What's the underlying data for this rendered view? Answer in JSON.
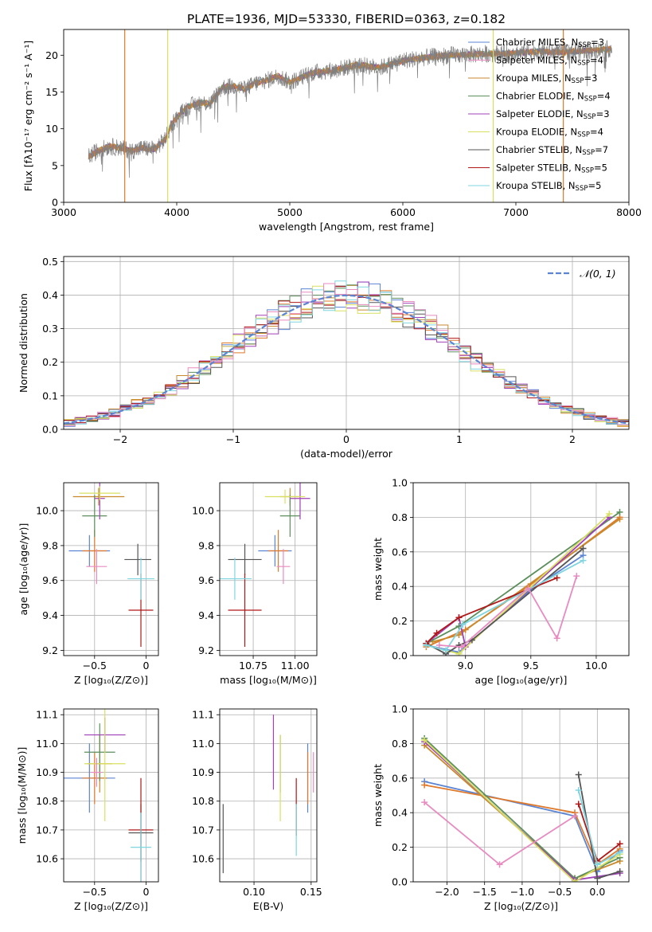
{
  "figure_title": "PLATE=1936, MJD=53330, FIBERID=0363, z=0.182",
  "colors": {
    "chabrier_miles": "#5b84d4",
    "salpeter_miles": "#e07a2a",
    "kroupa_miles": "#c98a2c",
    "chabrier_elodie": "#5c8f5c",
    "salpeter_elodie": "#a040b8",
    "kroupa_elodie": "#d8e060",
    "chabrier_stelib": "#555555",
    "salpeter_stelib": "#b01818",
    "kroupa_stelib": "#7fd6e0",
    "pink": "#e88bc0",
    "gray": "#808080",
    "normal": "#5b84d4"
  },
  "chart_data": [
    {
      "type": "line",
      "id": "spectrum",
      "xlabel": "wavelength [Angstrom, rest frame]",
      "ylabel": "Flux [fλ10⁻¹⁷ erg cm⁻² s⁻¹ A⁻¹]",
      "xlim": [
        3000,
        8000
      ],
      "ylim": [
        0,
        23.5
      ],
      "xticks": [
        3000,
        4000,
        5000,
        6000,
        7000,
        8000
      ],
      "yticks": [
        0,
        5,
        10,
        15,
        20
      ],
      "legend_position": "top-right",
      "continuum": {
        "x": [
          3220,
          3300,
          3400,
          3500,
          3600,
          3700,
          3800,
          3900,
          3950,
          4000,
          4100,
          4200,
          4300,
          4400,
          4500,
          4600,
          4700,
          4800,
          4900,
          5000,
          5200,
          5400,
          5600,
          5800,
          6000,
          6200,
          6400,
          6600,
          6800,
          7000,
          7200,
          7400,
          7600,
          7800,
          7850
        ],
        "y": [
          6.2,
          7.0,
          7.6,
          7.4,
          7.0,
          7.4,
          7.2,
          8.6,
          10.5,
          11.5,
          13.0,
          13.5,
          13.5,
          15.6,
          15.8,
          15.4,
          16.2,
          16.6,
          17.2,
          16.3,
          17.6,
          18.0,
          18.7,
          18.3,
          19.3,
          19.7,
          20.0,
          20.1,
          20.2,
          20.3,
          20.5,
          20.4,
          20.6,
          20.8,
          20.9
        ]
      },
      "legend": [
        {
          "label": "Chabrier MILES, N",
          "sub": "SSP",
          "suffix": "=3",
          "color_key": "chabrier_miles"
        },
        {
          "label": "Salpeter MILES, N",
          "sub": "SSP",
          "suffix": "=4",
          "color_key": "pink"
        },
        {
          "label": "Kroupa MILES, N",
          "sub": "SSP",
          "suffix": "=3",
          "color_key": "kroupa_miles"
        },
        {
          "label": "Chabrier ELODIE, N",
          "sub": "SSP",
          "suffix": "=4",
          "color_key": "chabrier_elodie"
        },
        {
          "label": "Salpeter ELODIE, N",
          "sub": "SSP",
          "suffix": "=3",
          "color_key": "salpeter_elodie"
        },
        {
          "label": "Kroupa ELODIE, N",
          "sub": "SSP",
          "suffix": "=4",
          "color_key": "kroupa_elodie"
        },
        {
          "label": "Chabrier STELIB, N",
          "sub": "SSP",
          "suffix": "=7",
          "color_key": "chabrier_stelib"
        },
        {
          "label": "Salpeter STELIB, N",
          "sub": "SSP",
          "suffix": "=5",
          "color_key": "salpeter_stelib"
        },
        {
          "label": "Kroupa STELIB, N",
          "sub": "SSP",
          "suffix": "=5",
          "color_key": "kroupa_stelib"
        }
      ],
      "cutoffs": [
        {
          "x": 3540,
          "color_key": "salpeter_miles"
        },
        {
          "x": 3920,
          "color_key": "kroupa_elodie"
        },
        {
          "x": 6800,
          "color_key": "kroupa_elodie"
        },
        {
          "x": 7420,
          "color_key": "salpeter_miles"
        }
      ]
    },
    {
      "type": "histogram",
      "id": "residuals",
      "xlabel": "(data-model)/error",
      "ylabel": "Normed distribution",
      "xlim": [
        -2.5,
        2.5
      ],
      "ylim": [
        0,
        0.515
      ],
      "xticks": [
        -2,
        -1,
        0,
        1,
        2
      ],
      "yticks": [
        0.0,
        0.1,
        0.2,
        0.3,
        0.4,
        0.5
      ],
      "grid": true,
      "bin_width": 0.1,
      "normal_label": "𝒩(0, 1)",
      "legend_position": "top-right"
    },
    {
      "type": "errorbar",
      "id": "age_vs_z",
      "xlabel": "Z [log₁₀(Z/Z⊙)]",
      "ylabel": "age  [log₁₀(age/yr)]",
      "xlim": [
        -0.8,
        0.12
      ],
      "ylim": [
        9.17,
        10.16
      ],
      "xticks": [
        -0.5,
        0.0
      ],
      "yticks": [
        9.2,
        9.4,
        9.6,
        9.8,
        10.0
      ],
      "points": [
        {
          "x": -0.55,
          "xerr": 0.2,
          "y": 9.77,
          "yerr": 0.09,
          "color_key": "chabrier_miles"
        },
        {
          "x": -0.5,
          "xerr": 0.12,
          "y": 9.77,
          "yerr": 0.12,
          "color_key": "salpeter_miles"
        },
        {
          "x": -0.46,
          "xerr": 0.25,
          "y": 10.08,
          "yerr": 0.05,
          "color_key": "kroupa_miles"
        },
        {
          "x": -0.5,
          "xerr": 0.12,
          "y": 9.97,
          "yerr": 0.12,
          "color_key": "chabrier_elodie"
        },
        {
          "x": -0.45,
          "xerr": 0.05,
          "y": 10.07,
          "yerr": 0.12,
          "color_key": "salpeter_elodie"
        },
        {
          "x": -0.45,
          "xerr": 0.2,
          "y": 10.1,
          "yerr": 0.04,
          "color_key": "kroupa_elodie"
        },
        {
          "x": -0.08,
          "xerr": 0.13,
          "y": 9.72,
          "yerr": 0.09,
          "color_key": "chabrier_stelib"
        },
        {
          "x": -0.05,
          "xerr": 0.12,
          "y": 9.43,
          "yerr": 0.21,
          "color_key": "salpeter_stelib"
        },
        {
          "x": -0.05,
          "xerr": 0.13,
          "y": 9.61,
          "yerr": 0.12,
          "color_key": "kroupa_stelib"
        },
        {
          "x": -0.48,
          "xerr": 0.1,
          "y": 9.68,
          "yerr": 0.1,
          "color_key": "pink"
        }
      ]
    },
    {
      "type": "errorbar",
      "id": "age_vs_mass",
      "xlabel": "mass [log₁₀(M/M⊙)]",
      "ylabel": "",
      "xlim": [
        10.55,
        11.13
      ],
      "ylim": [
        9.17,
        10.16
      ],
      "xticks": [
        10.75,
        11.0
      ],
      "xtick_labels": [
        "10.75",
        "11.00"
      ],
      "yticks": [
        9.2,
        9.4,
        9.6,
        9.8,
        10.0
      ],
      "points": [
        {
          "x": 10.88,
          "xerr": 0.1,
          "y": 9.77,
          "yerr": 0.09,
          "color_key": "chabrier_miles"
        },
        {
          "x": 10.9,
          "xerr": 0.06,
          "y": 9.77,
          "yerr": 0.12,
          "color_key": "salpeter_miles"
        },
        {
          "x": 10.97,
          "xerr": 0.06,
          "y": 10.08,
          "yerr": 0.05,
          "color_key": "kroupa_miles"
        },
        {
          "x": 10.97,
          "xerr": 0.06,
          "y": 9.97,
          "yerr": 0.12,
          "color_key": "chabrier_elodie"
        },
        {
          "x": 11.03,
          "xerr": 0.06,
          "y": 10.07,
          "yerr": 0.12,
          "color_key": "salpeter_elodie"
        },
        {
          "x": 10.94,
          "xerr": 0.12,
          "y": 10.08,
          "yerr": 0.04,
          "color_key": "kroupa_elodie"
        },
        {
          "x": 10.7,
          "xerr": 0.1,
          "y": 9.72,
          "yerr": 0.09,
          "color_key": "chabrier_stelib"
        },
        {
          "x": 10.7,
          "xerr": 0.1,
          "y": 9.43,
          "yerr": 0.21,
          "color_key": "salpeter_stelib"
        },
        {
          "x": 10.64,
          "xerr": 0.1,
          "y": 9.61,
          "yerr": 0.12,
          "color_key": "kroupa_stelib"
        },
        {
          "x": 10.93,
          "xerr": 0.04,
          "y": 9.68,
          "yerr": 0.1,
          "color_key": "pink"
        }
      ]
    },
    {
      "type": "line",
      "id": "weight_vs_age",
      "xlabel": "age  [log₁₀(age/yr)]",
      "ylabel": "mass weight",
      "xlim": [
        8.6,
        10.25
      ],
      "ylim": [
        0,
        1.0
      ],
      "xticks": [
        9.0,
        9.5,
        10.0
      ],
      "yticks": [
        0.0,
        0.2,
        0.4,
        0.6,
        0.8,
        1.0
      ],
      "grid": true,
      "series": [
        {
          "color_key": "chabrier_miles",
          "x": [
            8.7,
            8.95,
            9.5,
            9.9
          ],
          "y": [
            0.06,
            0.02,
            0.38,
            0.58
          ]
        },
        {
          "color_key": "salpeter_miles",
          "x": [
            8.7,
            9.0,
            9.48,
            10.18
          ],
          "y": [
            0.05,
            0.15,
            0.4,
            0.8
          ]
        },
        {
          "color_key": "kroupa_miles",
          "x": [
            8.75,
            8.95,
            10.18
          ],
          "y": [
            0.08,
            0.12,
            0.79
          ]
        },
        {
          "color_key": "chabrier_elodie",
          "x": [
            8.7,
            8.95,
            10.18
          ],
          "y": [
            0.07,
            0.17,
            0.83
          ]
        },
        {
          "color_key": "salpeter_elodie",
          "x": [
            8.7,
            8.95,
            9.0,
            10.1
          ],
          "y": [
            0.07,
            0.22,
            0.05,
            0.8
          ]
        },
        {
          "color_key": "kroupa_elodie",
          "x": [
            8.7,
            8.95,
            10.1
          ],
          "y": [
            0.06,
            0.01,
            0.82
          ]
        },
        {
          "color_key": "chabrier_stelib",
          "x": [
            8.7,
            8.85,
            8.95,
            9.05,
            9.9
          ],
          "y": [
            0.07,
            0.01,
            0.06,
            0.09,
            0.62
          ]
        },
        {
          "color_key": "salpeter_stelib",
          "x": [
            8.7,
            8.78,
            8.95,
            9.7
          ],
          "y": [
            0.07,
            0.13,
            0.22,
            0.45
          ]
        },
        {
          "color_key": "kroupa_stelib",
          "x": [
            8.7,
            8.85,
            8.98,
            9.9
          ],
          "y": [
            0.06,
            0.03,
            0.18,
            0.55
          ]
        },
        {
          "color_key": "pink",
          "x": [
            8.8,
            8.97,
            9.48,
            9.7,
            9.85
          ],
          "y": [
            0.06,
            0.05,
            0.39,
            0.1,
            0.46
          ]
        }
      ]
    },
    {
      "type": "errorbar",
      "id": "mass_vs_z",
      "xlabel": "Z [log₁₀(Z/Z⊙)]",
      "ylabel": "mass [log₁₀(M/M⊙)]",
      "xlim": [
        -0.8,
        0.12
      ],
      "ylim": [
        10.52,
        11.12
      ],
      "xticks": [
        -0.5,
        0.0
      ],
      "yticks": [
        10.6,
        10.7,
        10.8,
        10.9,
        11.0,
        11.1
      ],
      "points": [
        {
          "x": -0.55,
          "xerr": 0.25,
          "y": 10.88,
          "yerr": 0.12,
          "color_key": "chabrier_miles"
        },
        {
          "x": -0.5,
          "xerr": 0.12,
          "y": 10.88,
          "yerr": 0.09,
          "color_key": "salpeter_miles"
        },
        {
          "x": -0.45,
          "xerr": 0.12,
          "y": 10.93,
          "yerr": 0.1,
          "color_key": "kroupa_miles"
        },
        {
          "x": -0.45,
          "xerr": 0.15,
          "y": 10.97,
          "yerr": 0.1,
          "color_key": "chabrier_elodie"
        },
        {
          "x": -0.4,
          "xerr": 0.2,
          "y": 11.03,
          "yerr": 0.06,
          "color_key": "salpeter_elodie"
        },
        {
          "x": -0.4,
          "xerr": 0.2,
          "y": 10.93,
          "yerr": 0.2,
          "color_key": "kroupa_elodie"
        },
        {
          "x": -0.05,
          "xerr": 0.12,
          "y": 10.69,
          "yerr": 0.1,
          "color_key": "chabrier_stelib"
        },
        {
          "x": -0.05,
          "xerr": 0.12,
          "y": 10.7,
          "yerr": 0.18,
          "color_key": "salpeter_stelib"
        },
        {
          "x": -0.05,
          "xerr": 0.1,
          "y": 10.64,
          "yerr": 0.12,
          "color_key": "kroupa_stelib"
        },
        {
          "x": -0.48,
          "xerr": 0.06,
          "y": 10.9,
          "yerr": 0.05,
          "color_key": "pink"
        }
      ]
    },
    {
      "type": "errorbar",
      "id": "mass_vs_ebv",
      "xlabel": "E(B-V)",
      "ylabel": "",
      "xlim": [
        0.07,
        0.155
      ],
      "ylim": [
        10.52,
        11.12
      ],
      "xticks": [
        0.1,
        0.15
      ],
      "xtick_labels": [
        "0.10",
        "0.15"
      ],
      "yticks": [
        10.6,
        10.7,
        10.8,
        10.9,
        11.0,
        11.1
      ],
      "points": [
        {
          "x": 0.147,
          "xerr": 0,
          "y": 10.88,
          "yerr": 0.12,
          "color_key": "chabrier_miles"
        },
        {
          "x": 0.147,
          "xerr": 0,
          "y": 10.88,
          "yerr": 0.09,
          "color_key": "salpeter_miles"
        },
        {
          "x": 0.123,
          "xerr": 0,
          "y": 10.93,
          "yerr": 0.1,
          "color_key": "chabrier_elodie"
        },
        {
          "x": 0.117,
          "xerr": 0,
          "y": 10.97,
          "yerr": 0.13,
          "color_key": "salpeter_elodie"
        },
        {
          "x": 0.123,
          "xerr": 0,
          "y": 10.88,
          "yerr": 0.15,
          "color_key": "kroupa_elodie"
        },
        {
          "x": 0.073,
          "xerr": 0,
          "y": 10.67,
          "yerr": 0.12,
          "color_key": "chabrier_stelib"
        },
        {
          "x": 0.137,
          "xerr": 0,
          "y": 10.78,
          "yerr": 0.1,
          "color_key": "salpeter_stelib"
        },
        {
          "x": 0.137,
          "xerr": 0,
          "y": 10.7,
          "yerr": 0.09,
          "color_key": "kroupa_stelib"
        },
        {
          "x": 0.152,
          "xerr": 0,
          "y": 10.9,
          "yerr": 0.07,
          "color_key": "pink"
        }
      ]
    },
    {
      "type": "line",
      "id": "weight_vs_z",
      "xlabel": "Z [log₁₀(Z/Z⊙)]",
      "ylabel": "mass weight",
      "xlim": [
        -2.45,
        0.42
      ],
      "ylim": [
        0,
        1.0
      ],
      "xticks": [
        -2.0,
        -1.5,
        -1.0,
        -0.5,
        0.0
      ],
      "yticks": [
        0.0,
        0.2,
        0.4,
        0.6,
        0.8,
        1.0
      ],
      "grid": true,
      "series": [
        {
          "color_key": "chabrier_miles",
          "x": [
            -2.3,
            -0.3,
            0.0,
            0.3
          ],
          "y": [
            0.58,
            0.38,
            0.06,
            0.18
          ]
        },
        {
          "color_key": "salpeter_miles",
          "x": [
            -2.3,
            -0.3,
            0.0,
            0.3
          ],
          "y": [
            0.56,
            0.4,
            0.1,
            0.19
          ]
        },
        {
          "color_key": "kroupa_miles",
          "x": [
            -2.3,
            -0.3,
            0.3
          ],
          "y": [
            0.79,
            0.02,
            0.12
          ]
        },
        {
          "color_key": "chabrier_elodie",
          "x": [
            -2.3,
            -0.3,
            0.3
          ],
          "y": [
            0.83,
            0.02,
            0.14
          ]
        },
        {
          "color_key": "salpeter_elodie",
          "x": [
            -2.3,
            -0.3,
            0.3
          ],
          "y": [
            0.81,
            0.01,
            0.05
          ]
        },
        {
          "color_key": "kroupa_elodie",
          "x": [
            -2.3,
            -0.3,
            0.3
          ],
          "y": [
            0.82,
            0.0,
            0.16
          ]
        },
        {
          "color_key": "chabrier_stelib",
          "x": [
            -0.25,
            0.0,
            0.3
          ],
          "y": [
            0.62,
            0.02,
            0.06
          ]
        },
        {
          "color_key": "salpeter_stelib",
          "x": [
            -0.25,
            0.0,
            0.3
          ],
          "y": [
            0.45,
            0.12,
            0.22
          ]
        },
        {
          "color_key": "kroupa_stelib",
          "x": [
            -0.25,
            0.0,
            0.3
          ],
          "y": [
            0.53,
            0.1,
            0.17
          ]
        },
        {
          "color_key": "pink",
          "x": [
            -2.3,
            -1.3,
            -0.3
          ],
          "y": [
            0.46,
            0.1,
            0.38
          ]
        }
      ]
    }
  ]
}
